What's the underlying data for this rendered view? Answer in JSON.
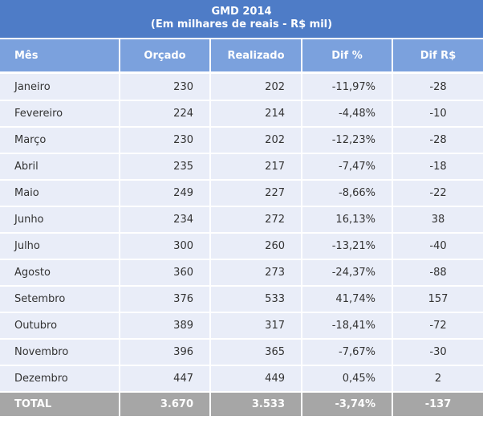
{
  "header": {
    "title": "GMD 2014",
    "subtitle": "(Em milhares de reais - R$ mil)"
  },
  "columns": [
    "Mês",
    "Orçado",
    "Realizado",
    "Dif %",
    "Dif R$"
  ],
  "rows": [
    {
      "mes": "Janeiro",
      "orcado": "230",
      "realizado": "202",
      "dif_pct": "-11,97%",
      "dif_rs": "-28"
    },
    {
      "mes": "Fevereiro",
      "orcado": "224",
      "realizado": "214",
      "dif_pct": "-4,48%",
      "dif_rs": "-10"
    },
    {
      "mes": "Março",
      "orcado": "230",
      "realizado": "202",
      "dif_pct": "-12,23%",
      "dif_rs": "-28"
    },
    {
      "mes": "Abril",
      "orcado": "235",
      "realizado": "217",
      "dif_pct": "-7,47%",
      "dif_rs": "-18"
    },
    {
      "mes": "Maio",
      "orcado": "249",
      "realizado": "227",
      "dif_pct": "-8,66%",
      "dif_rs": "-22"
    },
    {
      "mes": "Junho",
      "orcado": "234",
      "realizado": "272",
      "dif_pct": "16,13%",
      "dif_rs": "38"
    },
    {
      "mes": "Julho",
      "orcado": "300",
      "realizado": "260",
      "dif_pct": "-13,21%",
      "dif_rs": "-40"
    },
    {
      "mes": "Agosto",
      "orcado": "360",
      "realizado": "273",
      "dif_pct": "-24,37%",
      "dif_rs": "-88"
    },
    {
      "mes": "Setembro",
      "orcado": "376",
      "realizado": "533",
      "dif_pct": "41,74%",
      "dif_rs": "157"
    },
    {
      "mes": "Outubro",
      "orcado": "389",
      "realizado": "317",
      "dif_pct": "-18,41%",
      "dif_rs": "-72"
    },
    {
      "mes": "Novembro",
      "orcado": "396",
      "realizado": "365",
      "dif_pct": "-7,67%",
      "dif_rs": "-30"
    },
    {
      "mes": "Dezembro",
      "orcado": "447",
      "realizado": "449",
      "dif_pct": "0,45%",
      "dif_rs": "2"
    }
  ],
  "total": {
    "label": "TOTAL",
    "orcado": "3.670",
    "realizado": "3.533",
    "dif_pct": "-3,74%",
    "dif_rs": "-137"
  },
  "colors": {
    "title_bg": "#4e7cc7",
    "header_bg": "#7ba1dd",
    "row_bg": "#e9edf8",
    "total_bg": "#a6a6a6"
  }
}
